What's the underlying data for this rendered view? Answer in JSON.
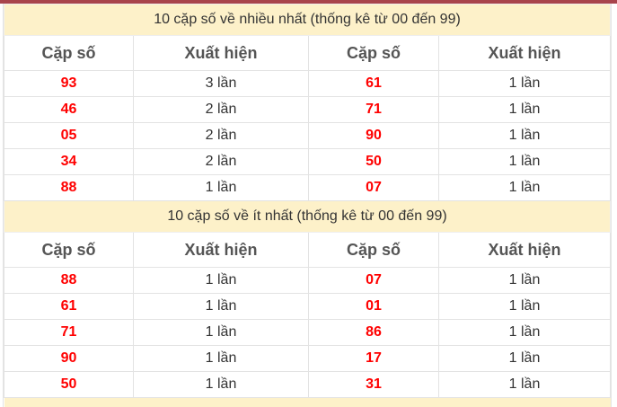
{
  "sections": [
    {
      "title": "10 cặp số về nhiều nhất (thống kê từ 00 đến 99)",
      "headers": [
        "Cặp số",
        "Xuất hiện",
        "Cặp số",
        "Xuất hiện"
      ],
      "rows": [
        [
          "93",
          "3 lần",
          "61",
          "1 lần"
        ],
        [
          "46",
          "2 lần",
          "71",
          "1 lần"
        ],
        [
          "05",
          "2 lần",
          "90",
          "1 lần"
        ],
        [
          "34",
          "2 lần",
          "50",
          "1 lần"
        ],
        [
          "88",
          "1 lần",
          "07",
          "1 lần"
        ]
      ]
    },
    {
      "title": "10 cặp số về ít nhất (thống kê từ 00 đến 99)",
      "headers": [
        "Cặp số",
        "Xuất hiện",
        "Cặp số",
        "Xuất hiện"
      ],
      "rows": [
        [
          "88",
          "1 lần",
          "07",
          "1 lần"
        ],
        [
          "61",
          "1 lần",
          "01",
          "1 lần"
        ],
        [
          "71",
          "1 lần",
          "86",
          "1 lần"
        ],
        [
          "90",
          "1 lần",
          "17",
          "1 lần"
        ],
        [
          "50",
          "1 lần",
          "31",
          "1 lần"
        ]
      ]
    }
  ],
  "colors": {
    "accent_bar": "#a8444c",
    "title_bg": "#fdf1c9",
    "number": "#ff0000"
  }
}
